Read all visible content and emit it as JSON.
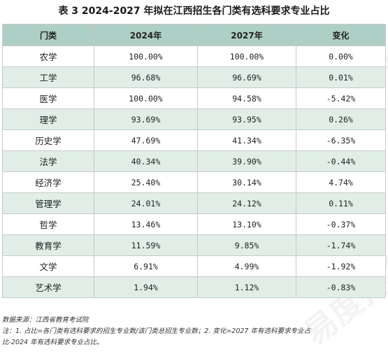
{
  "title": "表 3  2024-2027 年拟在江西招生各门类有选科要求专业占比",
  "table": {
    "headers": [
      "门类",
      "2024年",
      "2027年",
      "变化"
    ],
    "rows": [
      [
        "农学",
        "100.00%",
        "100.00%",
        "0.00%"
      ],
      [
        "工学",
        "96.68%",
        "96.69%",
        "0.01%"
      ],
      [
        "医学",
        "100.00%",
        "94.58%",
        "-5.42%"
      ],
      [
        "理学",
        "93.69%",
        "93.95%",
        "0.26%"
      ],
      [
        "历史学",
        "47.69%",
        "41.34%",
        "-6.35%"
      ],
      [
        "法学",
        "40.34%",
        "39.90%",
        "-0.44%"
      ],
      [
        "经济学",
        "25.40%",
        "30.14%",
        "4.74%"
      ],
      [
        "管理学",
        "24.01%",
        "24.12%",
        "0.11%"
      ],
      [
        "哲学",
        "13.46%",
        "13.10%",
        "-0.37%"
      ],
      [
        "教育学",
        "11.59%",
        "9.85%",
        "-1.74%"
      ],
      [
        "文学",
        "6.91%",
        "4.99%",
        "-1.92%"
      ],
      [
        "艺术学",
        "1.94%",
        "1.12%",
        "-0.83%"
      ]
    ]
  },
  "notes": {
    "source": "数据来源：江西省教育考试院",
    "note_line1": "注：1. 占比=各门类有选科要求的招生专业数/该门类总招生专业数；2. 变化=2027 年有选科要求专业占",
    "note_line2": "比-2024 年有选科要求专业占比。"
  }
}
